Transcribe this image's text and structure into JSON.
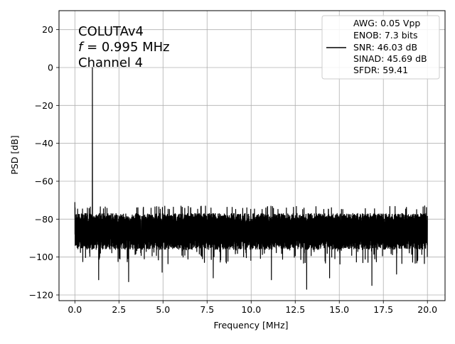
{
  "chart_data": {
    "type": "line",
    "title": "",
    "xlabel": "Frequency [MHz]",
    "ylabel": "PSD [dB]",
    "xlim": [
      -0.9,
      21.0
    ],
    "ylim": [
      -123,
      30
    ],
    "xticks": [
      0.0,
      2.5,
      5.0,
      7.5,
      10.0,
      12.5,
      15.0,
      17.5,
      20.0
    ],
    "xtick_labels": [
      "0.0",
      "2.5",
      "5.0",
      "7.5",
      "10.0",
      "12.5",
      "15.0",
      "17.5",
      "20.0"
    ],
    "yticks": [
      20,
      0,
      -20,
      -40,
      -60,
      -80,
      -100,
      -120
    ],
    "ytick_labels": [
      "20",
      "0",
      "−20",
      "−40",
      "−60",
      "−80",
      "−100",
      "−120"
    ],
    "grid": true,
    "line_color": "#000000",
    "annotation": {
      "line1": "COLUTAv4",
      "line2_italic": "f",
      "line2_rest": " = 0.995 MHz",
      "line3": "Channel 4"
    },
    "legend": {
      "placement": "top-right",
      "entries": [
        "AWG: 0.05 Vpp",
        "ENOB: 7.3 bits",
        "SNR: 46.03 dB",
        "SINAD: 45.69 dB",
        "SFDR: 59.41"
      ]
    },
    "series": [
      {
        "x_range": [
          0.0,
          20.0
        ],
        "noise_floor_band": [
          -96,
          -77
        ],
        "noise_extremes": [
          -117,
          -75
        ],
        "peak": {
          "x": 0.995,
          "y": 0.0
        },
        "dc_point": {
          "x": 0.0,
          "y": -71
        },
        "marked_dips": [
          {
            "x": 1.35,
            "y": -112
          },
          {
            "x": 3.05,
            "y": -113
          },
          {
            "x": 4.95,
            "y": -108
          },
          {
            "x": 7.85,
            "y": -111
          },
          {
            "x": 11.15,
            "y": -112
          },
          {
            "x": 13.15,
            "y": -117
          },
          {
            "x": 14.45,
            "y": -111
          },
          {
            "x": 16.85,
            "y": -115
          },
          {
            "x": 18.25,
            "y": -109
          }
        ]
      }
    ]
  }
}
